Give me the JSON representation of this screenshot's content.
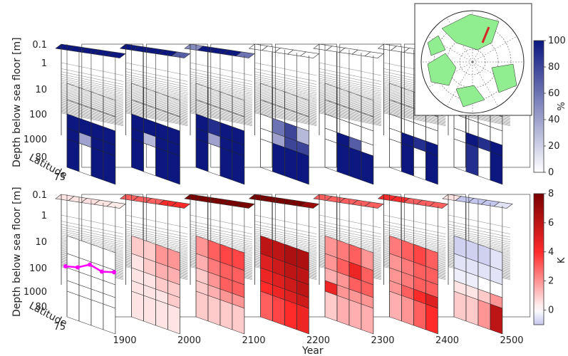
{
  "chart_data": {
    "type": "heatmap",
    "xlabel": "Year",
    "x_ticks": [
      "1900",
      "2000",
      "2100",
      "2200",
      "2300",
      "2400",
      "2500"
    ],
    "ylabel": "Depth below sea floor [m]",
    "y_ticks": [
      "0.1",
      "1",
      "10",
      "100",
      "1000"
    ],
    "zlabel": "Latitude",
    "z_ticks": [
      "80",
      "75"
    ],
    "panels": [
      {
        "name": "upper",
        "colorbar": {
          "ticks": [
            "0",
            "20",
            "40",
            "60",
            "80",
            "100"
          ],
          "unit": "%",
          "range": [
            0,
            100
          ],
          "colors": [
            "#ffffff",
            "#0c1780"
          ]
        },
        "slices": [
          {
            "year": 1900,
            "top_row": [
              100,
              100,
              100,
              100,
              100
            ],
            "region": [
              [
                0,
                0,
                0,
                0
              ],
              [
                0,
                0,
                0,
                0
              ],
              [
                100,
                100,
                100,
                100
              ],
              [
                100,
                40,
                100,
                100
              ],
              [
                100,
                0,
                100,
                100
              ]
            ]
          },
          {
            "year": 2000,
            "top_row": [
              100,
              100,
              100,
              100,
              70
            ],
            "region": [
              [
                0,
                0,
                0,
                0
              ],
              [
                0,
                0,
                0,
                0
              ],
              [
                100,
                100,
                100,
                100
              ],
              [
                100,
                30,
                100,
                100
              ],
              [
                100,
                0,
                100,
                100
              ]
            ]
          },
          {
            "year": 2100,
            "top_row": [
              50,
              100,
              100,
              100,
              60
            ],
            "region": [
              [
                0,
                0,
                0,
                0
              ],
              [
                0,
                0,
                0,
                0
              ],
              [
                100,
                90,
                100,
                100
              ],
              [
                100,
                40,
                100,
                100
              ],
              [
                100,
                0,
                100,
                100
              ]
            ]
          },
          {
            "year": 2200,
            "top_row": [
              0,
              0,
              0,
              0,
              0
            ],
            "region": [
              [
                0,
                0,
                0,
                0
              ],
              [
                0,
                0,
                0,
                0
              ],
              [
                0,
                60,
                80,
                30
              ],
              [
                0,
                40,
                80,
                80
              ],
              [
                0,
                100,
                100,
                100
              ]
            ]
          },
          {
            "year": 2300,
            "top_row": [
              0,
              0,
              0,
              0,
              0
            ],
            "region": [
              [
                0,
                0,
                0,
                0
              ],
              [
                0,
                0,
                0,
                0
              ],
              [
                0,
                0,
                0,
                0
              ],
              [
                0,
                100,
                70,
                0
              ],
              [
                0,
                100,
                100,
                100
              ]
            ]
          },
          {
            "year": 2400,
            "top_row": [
              0,
              0,
              0,
              0,
              0
            ],
            "region": [
              [
                0,
                0,
                0,
                0
              ],
              [
                0,
                0,
                0,
                0
              ],
              [
                0,
                0,
                0,
                0
              ],
              [
                0,
                100,
                90,
                100
              ],
              [
                0,
                100,
                0,
                100
              ]
            ]
          },
          {
            "year": 2500,
            "top_row": [
              0,
              0,
              0,
              0,
              0
            ],
            "region": [
              [
                0,
                0,
                0,
                0
              ],
              [
                0,
                0,
                0,
                0
              ],
              [
                0,
                0,
                0,
                0
              ],
              [
                0,
                100,
                90,
                100
              ],
              [
                0,
                90,
                0,
                100
              ]
            ]
          }
        ]
      },
      {
        "name": "lower",
        "colorbar": {
          "ticks": [
            "0",
            "2",
            "4",
            "6",
            "8"
          ],
          "unit": "K",
          "range": [
            -1,
            8
          ],
          "colors": [
            "#c4c6ee",
            "#ffffff",
            "#ff2a2a",
            "#7a0000"
          ]
        },
        "slices": [
          {
            "year": 1900,
            "top_row": [
              0.5,
              0.5,
              0.6,
              0.5,
              0.4
            ],
            "region": [
              [
                0,
                0,
                0,
                0
              ],
              [
                0,
                0,
                0,
                0
              ],
              [
                0,
                0,
                0,
                0
              ],
              [
                0,
                0,
                0,
                0
              ],
              [
                0,
                0,
                0,
                0
              ]
            ]
          },
          {
            "year": 2000,
            "top_row": [
              3,
              3,
              3,
              4,
              4
            ],
            "region": [
              [
                1,
                1,
                2,
                2
              ],
              [
                0.5,
                1,
                1.5,
                1.5
              ],
              [
                0.5,
                0.5,
                1,
                1
              ],
              [
                0.5,
                0.5,
                0.5,
                1
              ],
              [
                0.5,
                0.5,
                0.5,
                0.5
              ]
            ]
          },
          {
            "year": 2100,
            "top_row": [
              8,
              8,
              8,
              8,
              8
            ],
            "region": [
              [
                2,
                3,
                3.5,
                3.5
              ],
              [
                1.5,
                2.5,
                3,
                3
              ],
              [
                1,
                2,
                3,
                3
              ],
              [
                1,
                1.5,
                2,
                2
              ],
              [
                1,
                1,
                1,
                1
              ]
            ]
          },
          {
            "year": 2200,
            "top_row": [
              8,
              8,
              8,
              8,
              7
            ],
            "region": [
              [
                6,
                6,
                6.5,
                6.5
              ],
              [
                5,
                5.5,
                6,
                6
              ],
              [
                4.5,
                5,
                5.5,
                6
              ],
              [
                4,
                4.5,
                5,
                5.5
              ],
              [
                3,
                3.5,
                4,
                4.5
              ]
            ]
          },
          {
            "year": 2300,
            "top_row": [
              3,
              3,
              3,
              3,
              3
            ],
            "region": [
              [
                2,
                2.5,
                3,
                2
              ],
              [
                2,
                3,
                4.5,
                3
              ],
              [
                1.5,
                2,
                3,
                3
              ],
              [
                4.5,
                2,
                2,
                2
              ],
              [
                1,
                1.5,
                1.5,
                1.5
              ]
            ]
          },
          {
            "year": 2400,
            "top_row": [
              4,
              4,
              3,
              3,
              3
            ],
            "region": [
              [
                2.5,
                3,
                3.5,
                3
              ],
              [
                2,
                2.5,
                3,
                3
              ],
              [
                2,
                2.5,
                3,
                3
              ],
              [
                2,
                3,
                4,
                5
              ],
              [
                1.5,
                2,
                3,
                4
              ]
            ]
          },
          {
            "year": 2500,
            "top_row": [
              0.5,
              -1,
              -1,
              -1,
              -0.5
            ],
            "region": [
              [
                -0.8,
                -0.8,
                -0.8,
                -0.5
              ],
              [
                -0.5,
                -0.5,
                -0.5,
                -0.5
              ],
              [
                -0.3,
                -0.3,
                0,
                0
              ],
              [
                0.5,
                0.5,
                1,
                2
              ],
              [
                1,
                1,
                2,
                6
              ]
            ]
          }
        ],
        "line": {
          "color": "#ff00ff",
          "x_fraction": [
            0.0,
            0.25,
            0.5,
            0.75,
            1.0
          ],
          "y": [
            0.1,
            0.15,
            0.02,
            0.35,
            0.38
          ]
        }
      }
    ]
  },
  "inset_map": {
    "land_color": "#90ee90",
    "transect_color": "#d62728"
  }
}
